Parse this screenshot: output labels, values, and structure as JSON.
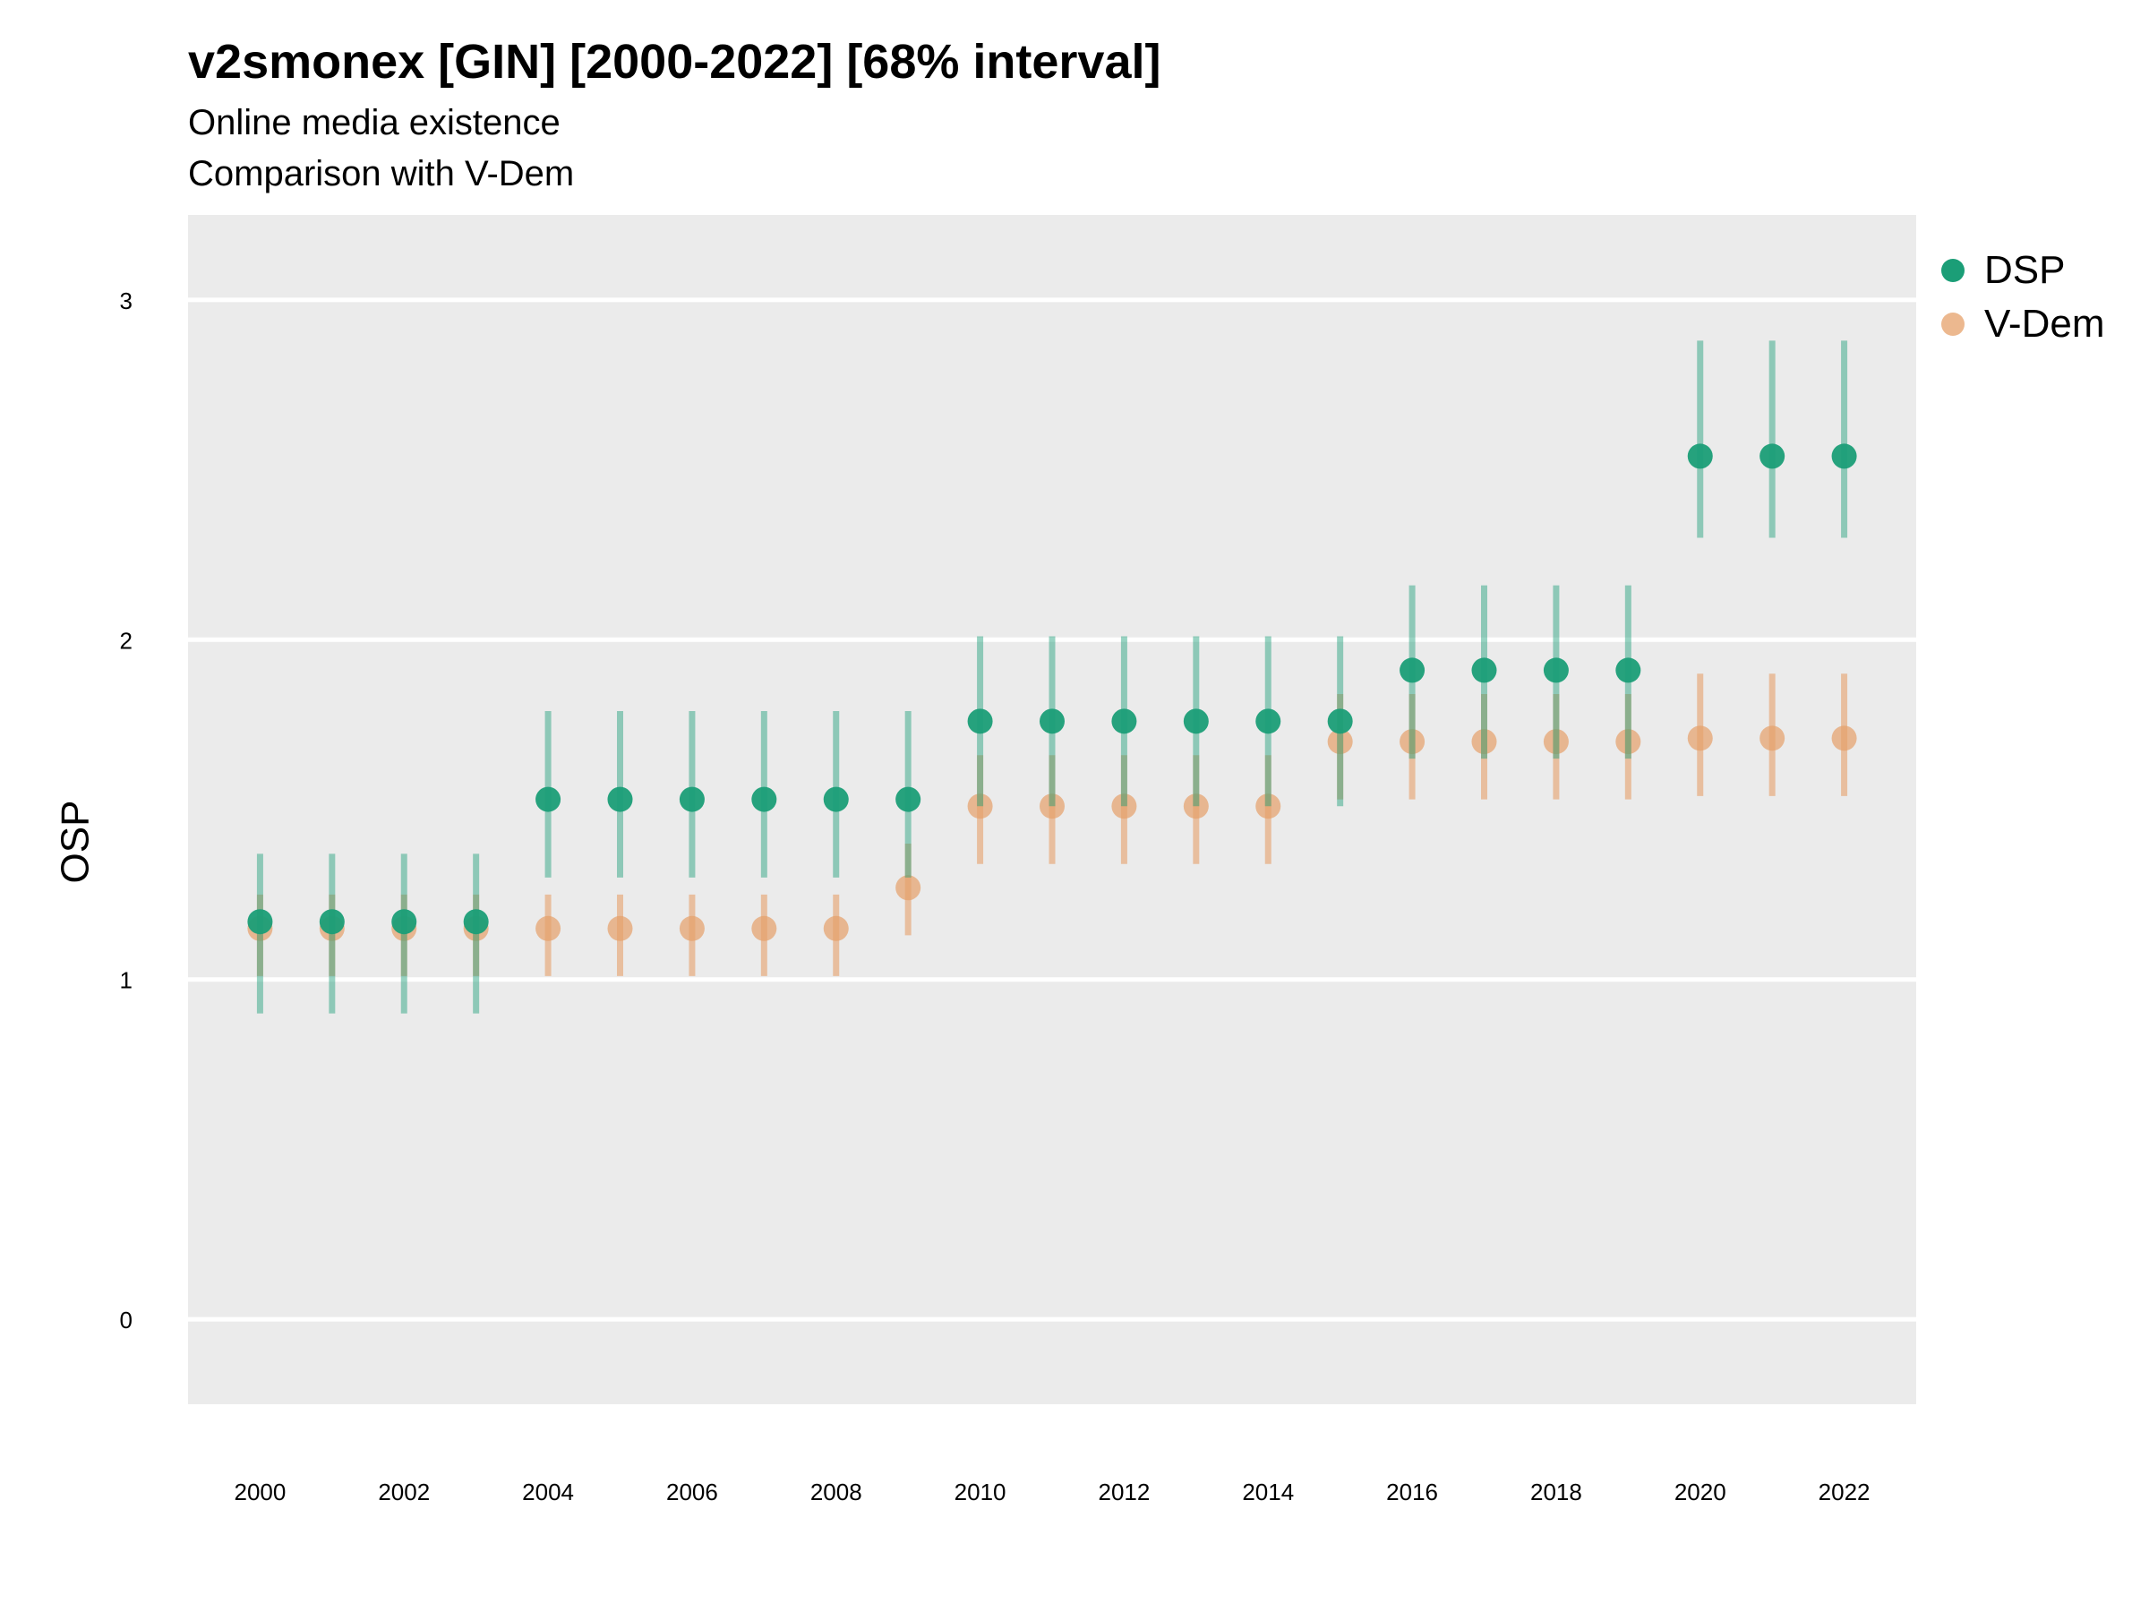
{
  "chart_data": {
    "type": "scatter",
    "title": "v2smonex [GIN] [2000-2022] [68% interval]",
    "subtitle": "Online media existence",
    "subtitle2": "Comparison with V-Dem",
    "xlabel": "",
    "ylabel": "OSP",
    "x": [
      2000,
      2001,
      2002,
      2003,
      2004,
      2005,
      2006,
      2007,
      2008,
      2009,
      2010,
      2011,
      2012,
      2013,
      2014,
      2015,
      2016,
      2017,
      2018,
      2019,
      2020,
      2021,
      2022
    ],
    "x_ticks": [
      "2000",
      "2002",
      "2004",
      "2006",
      "2008",
      "2010",
      "2012",
      "2014",
      "2016",
      "2018",
      "2020",
      "2022"
    ],
    "y_ticks": [
      "0",
      "1",
      "2",
      "3"
    ],
    "xlim": [
      1999.0,
      2023.0
    ],
    "ylim": [
      -0.25,
      3.25
    ],
    "grid": true,
    "legend_position": "right",
    "series": [
      {
        "name": "DSP",
        "color": "#1b9e77",
        "values": [
          1.17,
          1.17,
          1.17,
          1.17,
          1.53,
          1.53,
          1.53,
          1.53,
          1.53,
          1.53,
          1.76,
          1.76,
          1.76,
          1.76,
          1.76,
          1.76,
          1.91,
          1.91,
          1.91,
          1.91,
          2.54,
          2.54,
          2.54
        ],
        "lower": [
          0.9,
          0.9,
          0.9,
          0.9,
          1.3,
          1.3,
          1.3,
          1.3,
          1.3,
          1.3,
          1.51,
          1.51,
          1.51,
          1.51,
          1.51,
          1.51,
          1.65,
          1.65,
          1.65,
          1.65,
          2.3,
          2.3,
          2.3
        ],
        "upper": [
          1.37,
          1.37,
          1.37,
          1.37,
          1.79,
          1.79,
          1.79,
          1.79,
          1.79,
          1.79,
          2.01,
          2.01,
          2.01,
          2.01,
          2.01,
          2.01,
          2.16,
          2.16,
          2.16,
          2.16,
          2.88,
          2.88,
          2.88
        ]
      },
      {
        "name": "V-Dem",
        "color": "#e6a06a",
        "values": [
          1.15,
          1.15,
          1.15,
          1.15,
          1.15,
          1.15,
          1.15,
          1.15,
          1.15,
          1.27,
          1.51,
          1.51,
          1.51,
          1.51,
          1.51,
          1.7,
          1.7,
          1.7,
          1.7,
          1.7,
          1.71,
          1.71,
          1.71
        ],
        "lower": [
          1.01,
          1.01,
          1.01,
          1.01,
          1.01,
          1.01,
          1.01,
          1.01,
          1.01,
          1.13,
          1.34,
          1.34,
          1.34,
          1.34,
          1.34,
          1.53,
          1.53,
          1.53,
          1.53,
          1.53,
          1.54,
          1.54,
          1.54
        ],
        "upper": [
          1.25,
          1.25,
          1.25,
          1.25,
          1.25,
          1.25,
          1.25,
          1.25,
          1.25,
          1.4,
          1.66,
          1.66,
          1.66,
          1.66,
          1.66,
          1.84,
          1.84,
          1.84,
          1.84,
          1.84,
          1.9,
          1.9,
          1.9
        ]
      }
    ]
  }
}
